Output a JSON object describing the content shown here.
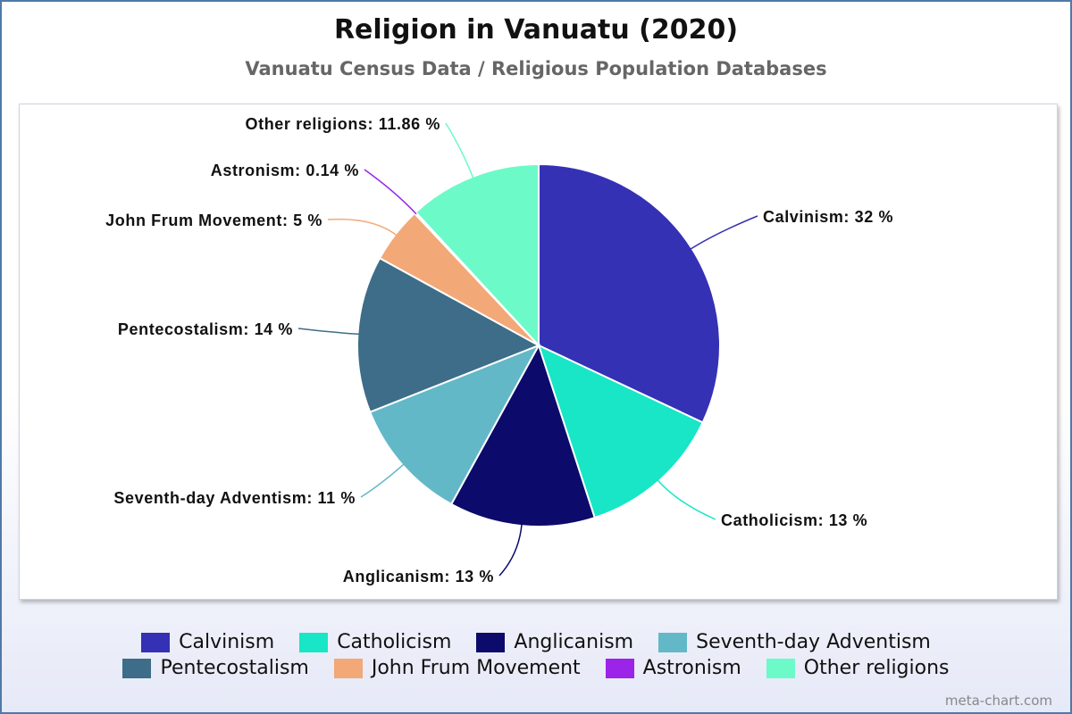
{
  "chart_data": {
    "type": "pie",
    "title": "Religion in Vanuatu (2020)",
    "subtitle": "Vanuatu Census Data / Religious Population Databases",
    "slices": [
      {
        "label": "Calvinism",
        "value": 32,
        "display": "Calvinism: 32 %",
        "color": "#3431b5"
      },
      {
        "label": "Catholicism",
        "value": 13,
        "display": "Catholicism: 13 %",
        "color": "#18e6c6"
      },
      {
        "label": "Anglicanism",
        "value": 13,
        "display": "Anglicanism: 13 %",
        "color": "#0c0a6a"
      },
      {
        "label": "Seventh-day Adventism",
        "value": 11,
        "display": "Seventh-day Adventism: 11 %",
        "color": "#63b8c7"
      },
      {
        "label": "Pentecostalism",
        "value": 14,
        "display": "Pentecostalism: 14 %",
        "color": "#3d6d88"
      },
      {
        "label": "John Frum Movement",
        "value": 5,
        "display": "John Frum Movement: 5 %",
        "color": "#f3a878"
      },
      {
        "label": "Astronism",
        "value": 0.14,
        "display": "Astronism: 0.14 %",
        "color": "#9b24e8"
      },
      {
        "label": "Other religions",
        "value": 11.86,
        "display": "Other religions: 11.86 %",
        "color": "#6cfac9"
      }
    ],
    "legend_position": "bottom"
  },
  "credit": "meta-chart.com"
}
